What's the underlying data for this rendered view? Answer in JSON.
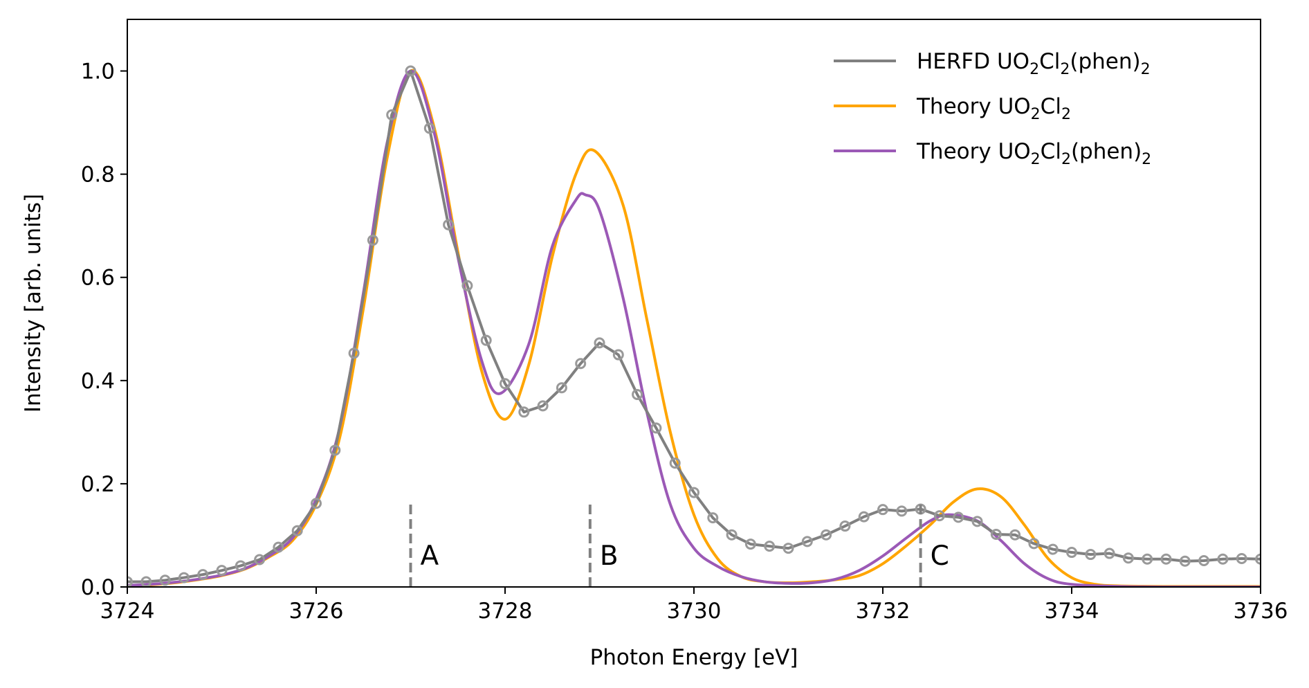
{
  "chart_data": {
    "type": "line",
    "title": "",
    "xlabel": "Photon Energy [eV]",
    "ylabel": "Intensity [arb. units]",
    "xlim": [
      3724,
      3736
    ],
    "ylim": [
      0,
      1.1
    ],
    "xticks": [
      3724,
      3726,
      3728,
      3730,
      3732,
      3734,
      3736
    ],
    "xtick_labels": [
      "3724",
      "3726",
      "3728",
      "3730",
      "3732",
      "3734",
      "3736"
    ],
    "yticks": [
      0.0,
      0.2,
      0.4,
      0.6,
      0.8,
      1.0
    ],
    "ytick_labels": [
      "0.0",
      "0.2",
      "0.4",
      "0.6",
      "0.8",
      "1.0"
    ],
    "grid": false,
    "legend_position": "top-right",
    "series": [
      {
        "name": "HERFD UO2Cl2(phen)2",
        "legend_main": "HERFD UO",
        "legend_sub1": "2",
        "legend_mid1": "Cl",
        "legend_sub2": "2",
        "legend_mid2": "(phen)",
        "legend_sub3": "2",
        "style": "line+markers",
        "color": "#808080",
        "x": [
          3724.0,
          3724.2,
          3724.4,
          3724.6,
          3724.8,
          3725.0,
          3725.2,
          3725.4,
          3725.6,
          3725.8,
          3726.0,
          3726.2,
          3726.4,
          3726.6,
          3726.8,
          3727.0,
          3727.2,
          3727.4,
          3727.6,
          3727.8,
          3728.0,
          3728.2,
          3728.4,
          3728.6,
          3728.8,
          3729.0,
          3729.2,
          3729.4,
          3729.6,
          3729.8,
          3730.0,
          3730.2,
          3730.4,
          3730.6,
          3730.8,
          3731.0,
          3731.2,
          3731.4,
          3731.6,
          3731.8,
          3732.0,
          3732.2,
          3732.4,
          3732.6,
          3732.8,
          3733.0,
          3733.2,
          3733.4,
          3733.6,
          3733.8,
          3734.0,
          3734.2,
          3734.4,
          3734.6,
          3734.8,
          3735.0,
          3735.2,
          3735.4,
          3735.6,
          3735.8,
          3736.0
        ],
        "values": [
          0.01,
          0.01,
          0.013,
          0.018,
          0.024,
          0.032,
          0.041,
          0.053,
          0.077,
          0.109,
          0.162,
          0.265,
          0.453,
          0.672,
          0.915,
          1.0,
          0.889,
          0.702,
          0.584,
          0.478,
          0.394,
          0.339,
          0.351,
          0.386,
          0.433,
          0.473,
          0.45,
          0.373,
          0.308,
          0.24,
          0.183,
          0.134,
          0.101,
          0.083,
          0.079,
          0.075,
          0.088,
          0.101,
          0.118,
          0.136,
          0.15,
          0.147,
          0.151,
          0.138,
          0.135,
          0.127,
          0.102,
          0.101,
          0.084,
          0.073,
          0.067,
          0.063,
          0.065,
          0.056,
          0.054,
          0.054,
          0.05,
          0.051,
          0.054,
          0.055,
          0.054
        ]
      },
      {
        "name": "Theory UO2Cl2",
        "legend_main": "Theory UO",
        "legend_sub1": "2",
        "legend_mid1": "Cl",
        "legend_sub2": "2",
        "style": "line",
        "color": "#FFA500",
        "x": [
          3724.0,
          3724.25,
          3724.5,
          3724.75,
          3725.0,
          3725.25,
          3725.5,
          3725.75,
          3726.0,
          3726.25,
          3726.5,
          3726.75,
          3727.0,
          3727.25,
          3727.5,
          3727.75,
          3728.0,
          3728.25,
          3728.5,
          3728.75,
          3728.95,
          3729.25,
          3729.5,
          3729.75,
          3730.0,
          3730.25,
          3730.5,
          3730.75,
          3731.0,
          3731.25,
          3731.5,
          3731.75,
          3732.0,
          3732.25,
          3732.5,
          3732.75,
          3733.0,
          3733.25,
          3733.5,
          3733.75,
          3734.0,
          3734.25,
          3734.5,
          3735.0,
          3735.5,
          3736.0
        ],
        "values": [
          0.002,
          0.004,
          0.008,
          0.014,
          0.022,
          0.035,
          0.058,
          0.09,
          0.16,
          0.29,
          0.54,
          0.83,
          1.0,
          0.89,
          0.65,
          0.42,
          0.325,
          0.43,
          0.64,
          0.8,
          0.845,
          0.74,
          0.52,
          0.3,
          0.14,
          0.055,
          0.02,
          0.01,
          0.008,
          0.01,
          0.014,
          0.022,
          0.045,
          0.08,
          0.12,
          0.165,
          0.19,
          0.175,
          0.12,
          0.055,
          0.018,
          0.005,
          0.002,
          0.001,
          0.001,
          0.001
        ]
      },
      {
        "name": "Theory UO2Cl2(phen)2",
        "legend_main": "Theory UO",
        "legend_sub1": "2",
        "legend_mid1": "Cl",
        "legend_sub2": "2",
        "legend_mid2": "(phen)",
        "legend_sub3": "2",
        "style": "line",
        "color": "#9B59B6",
        "x": [
          3724.0,
          3724.25,
          3724.5,
          3724.75,
          3725.0,
          3725.25,
          3725.5,
          3725.75,
          3726.0,
          3726.25,
          3726.5,
          3726.75,
          3727.0,
          3727.25,
          3727.5,
          3727.75,
          3727.95,
          3728.25,
          3728.5,
          3728.75,
          3728.85,
          3729.0,
          3729.25,
          3729.5,
          3729.75,
          3730.0,
          3730.25,
          3730.5,
          3730.75,
          3731.0,
          3731.25,
          3731.5,
          3731.75,
          3732.0,
          3732.25,
          3732.5,
          3732.7,
          3733.0,
          3733.25,
          3733.5,
          3733.75,
          3734.0,
          3734.5,
          3735.0,
          3735.5,
          3736.0
        ],
        "values": [
          0.003,
          0.005,
          0.009,
          0.015,
          0.023,
          0.036,
          0.06,
          0.095,
          0.17,
          0.31,
          0.57,
          0.86,
          1.0,
          0.88,
          0.64,
          0.44,
          0.375,
          0.47,
          0.66,
          0.75,
          0.76,
          0.73,
          0.56,
          0.34,
          0.16,
          0.075,
          0.04,
          0.02,
          0.01,
          0.007,
          0.008,
          0.015,
          0.032,
          0.06,
          0.095,
          0.128,
          0.14,
          0.128,
          0.09,
          0.045,
          0.016,
          0.005,
          0.001,
          0.0,
          0.0,
          0.0
        ]
      }
    ],
    "annotations": [
      {
        "label": "A",
        "x": 3727.0,
        "ymax": 0.165
      },
      {
        "label": "B",
        "x": 3728.9,
        "ymax": 0.165
      },
      {
        "label": "C",
        "x": 3732.4,
        "ymax": 0.165
      }
    ]
  }
}
